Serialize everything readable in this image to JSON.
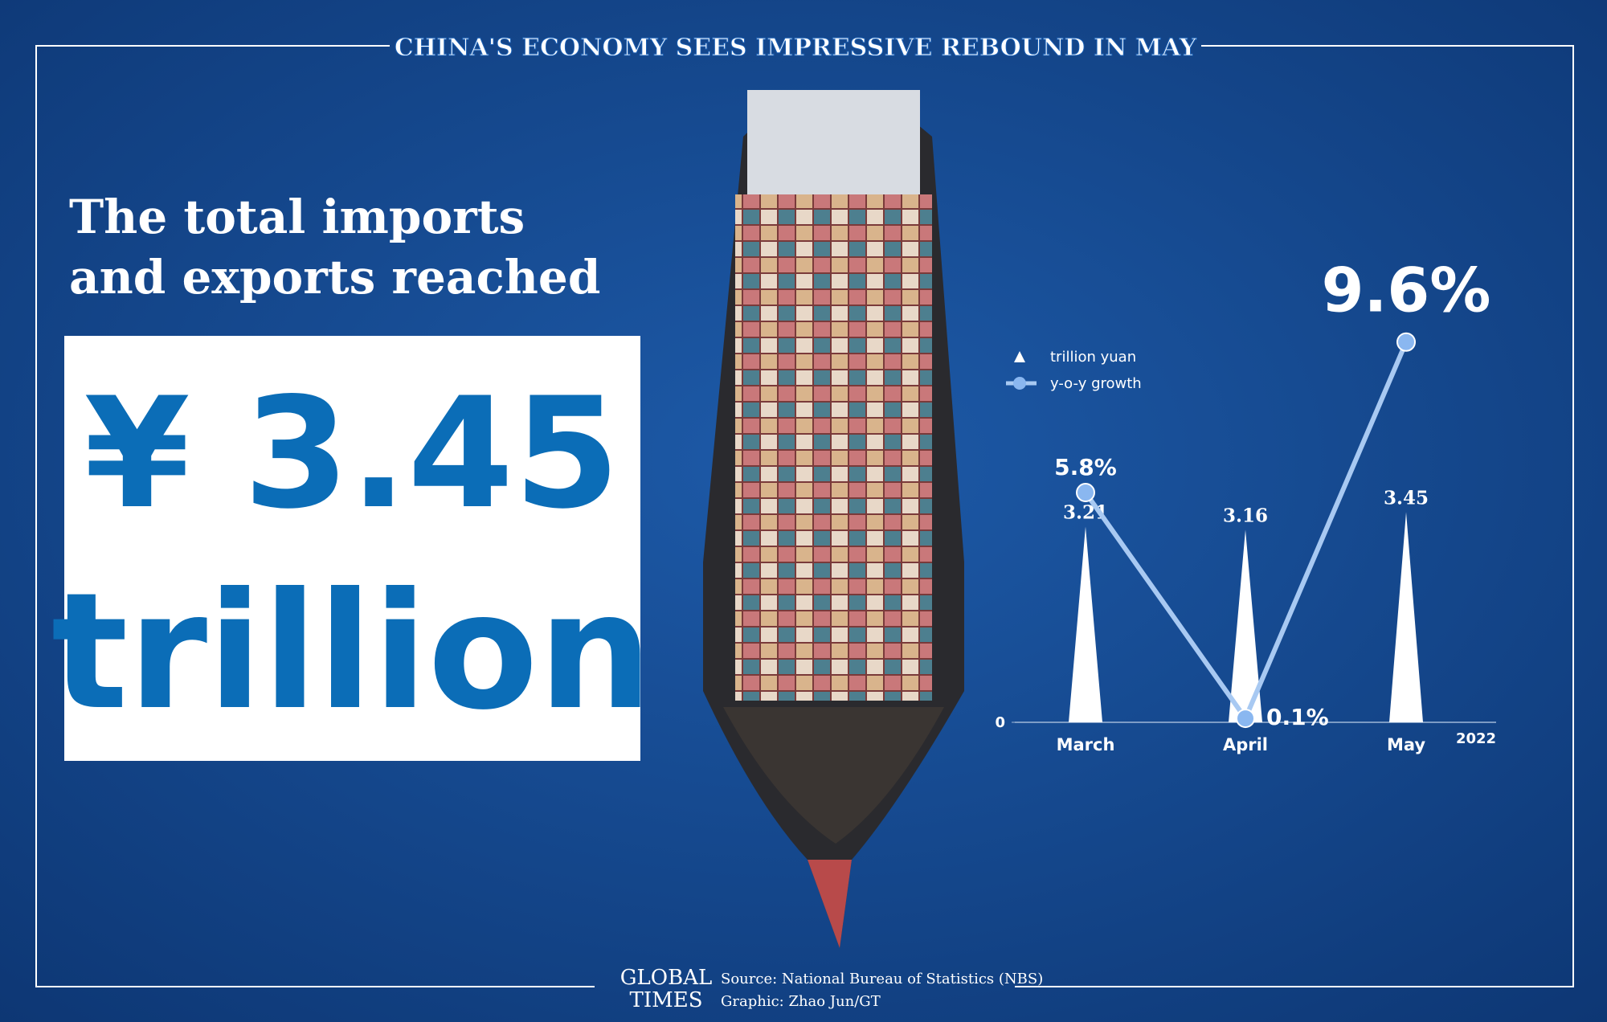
{
  "chart_data": {
    "type": "bar",
    "title": "CHINA'S ECONOMY SEES IMPRESSIVE REBOUND IN MAY",
    "headline": [
      "The total imports",
      "and exports reached"
    ],
    "headline_value": "¥ 3.45",
    "headline_unit": "trillion",
    "categories": [
      "March",
      "April",
      "May"
    ],
    "x_note": "2022",
    "series": [
      {
        "name": "trillion yuan",
        "type": "bar",
        "color": "#ffffff",
        "values": [
          3.21,
          3.16,
          3.45
        ]
      },
      {
        "name": "y-o-y growth",
        "type": "line",
        "axis": "y2",
        "color": "#a8c9f2",
        "values": [
          5.8,
          0.1,
          9.6
        ],
        "value_labels": [
          "5.8%",
          "0.1%",
          "9.6%"
        ]
      }
    ],
    "ylim": [
      0,
      6.5
    ],
    "yticks": [
      0
    ],
    "y2lim": [
      0,
      10
    ],
    "source": "Source: National Bureau of Statistics (NBS)",
    "credit": "Graphic: Zhao Jun/GT",
    "logo": [
      "GLOBAL",
      "TIMES"
    ]
  }
}
